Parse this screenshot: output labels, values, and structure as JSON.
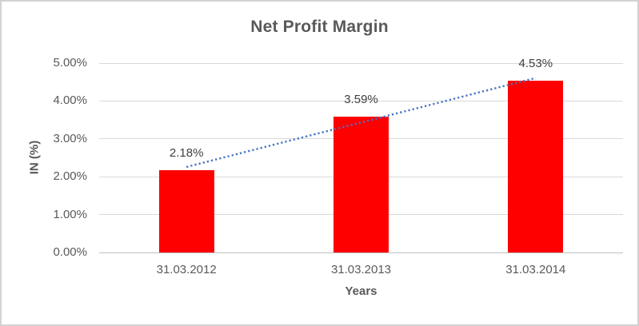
{
  "window": {
    "background_color": "#FFFFFF",
    "border_color": "#D2D2D2"
  },
  "chart_data": {
    "type": "bar",
    "title": "Net Profit Margin",
    "categories": [
      "31.03.2012",
      "31.03.2013",
      "31.03.2014"
    ],
    "values": [
      2.18,
      3.59,
      4.53
    ],
    "data_labels": [
      "2.18%",
      "3.59%",
      "4.53%"
    ],
    "xlabel": "Years",
    "ylabel": "IN (%)",
    "ylim": [
      0,
      5
    ],
    "ytick_step": 1,
    "ytick_labels": [
      "0.00%",
      "1.00%",
      "2.00%",
      "3.00%",
      "4.00%",
      "5.00%"
    ],
    "grid": true,
    "legend": "none",
    "bar_color": "#FF0000",
    "trendline": {
      "type": "linear",
      "style": "dotted",
      "color": "#4472C4",
      "spans": "first-to-last-category-center"
    },
    "colors": {
      "title_text": "#595959",
      "axis_text": "#595959",
      "data_label_text": "#404040",
      "gridline": "#D9D9D9",
      "axis_line": "#BFBFBF"
    }
  }
}
